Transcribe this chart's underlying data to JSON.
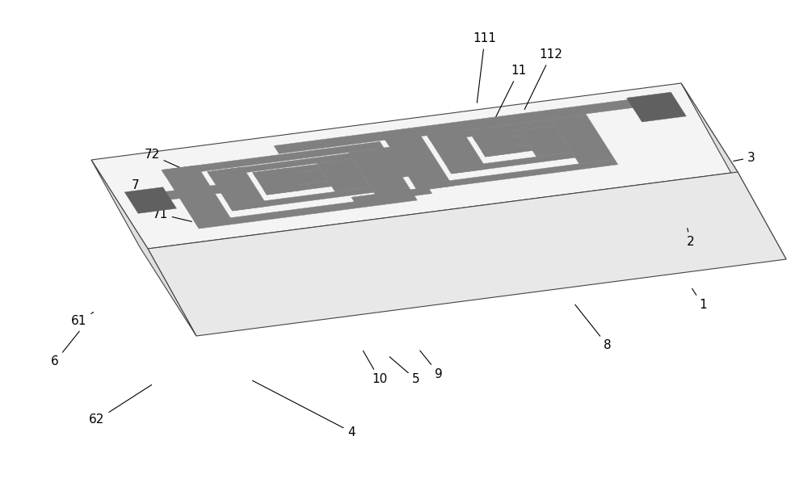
{
  "bg_color": "#ffffff",
  "gray": "#808080",
  "dark_gray": "#606060",
  "line_color": "#444444",
  "fig_width": 10.0,
  "fig_height": 6.08,
  "dpi": 100
}
